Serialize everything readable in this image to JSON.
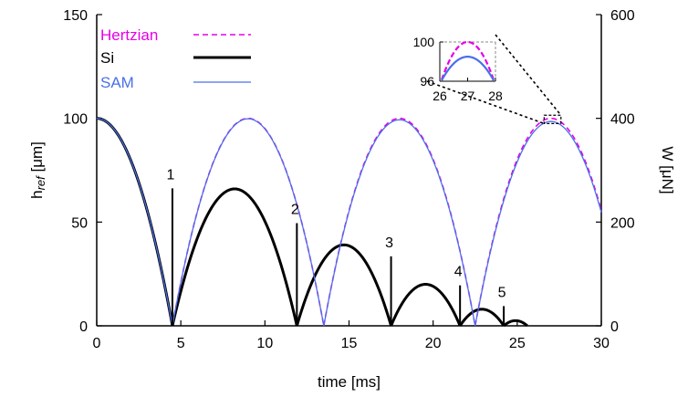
{
  "chart_data": {
    "type": "line",
    "xlabel": "time [ms]",
    "ylabel_left": "h",
    "ylabel_left_sub": "ref",
    "ylabel_left_unit": " [μm]",
    "ylabel_right": "W [μN]",
    "xlim": [
      0,
      30
    ],
    "ylim_left": [
      0,
      150
    ],
    "ylim_right": [
      0,
      600
    ],
    "xticks": [
      "0",
      "5",
      "10",
      "15",
      "20",
      "25",
      "30"
    ],
    "yticks_left": [
      "0",
      "50",
      "100",
      "150"
    ],
    "yticks_right": [
      "0",
      "200",
      "400",
      "600"
    ],
    "grid": false,
    "legend_position": "top-left",
    "colors": {
      "hertzian": "#e600e6",
      "si": "#000000",
      "sam": "#4a6fe8"
    },
    "series": [
      {
        "name": "Hertzian",
        "style": "dashed",
        "arcs": [
          {
            "t_start": 0,
            "t_end": 4.5,
            "apex_t": 0,
            "apex_h": 100
          },
          {
            "t_start": 4.5,
            "t_end": 13.5,
            "apex_t": 9,
            "apex_h": 100
          },
          {
            "t_start": 13.5,
            "t_end": 22.5,
            "apex_t": 18,
            "apex_h": 100
          },
          {
            "t_start": 22.5,
            "t_end": 30,
            "apex_t": 27,
            "apex_h": 100
          }
        ]
      },
      {
        "name": "Si",
        "style": "thick",
        "arcs": [
          {
            "t_start": 0,
            "t_end": 4.5,
            "apex_t": 0,
            "apex_h": 100
          },
          {
            "t_start": 4.5,
            "t_end": 11.9,
            "apex_t": 8.2,
            "apex_h": 66
          },
          {
            "t_start": 11.9,
            "t_end": 17.5,
            "apex_t": 14.7,
            "apex_h": 39
          },
          {
            "t_start": 17.5,
            "t_end": 21.6,
            "apex_t": 19.55,
            "apex_h": 20
          },
          {
            "t_start": 21.6,
            "t_end": 24.2,
            "apex_t": 22.9,
            "apex_h": 8
          },
          {
            "t_start": 24.2,
            "t_end": 25.6,
            "apex_t": 24.9,
            "apex_h": 2.5
          }
        ]
      },
      {
        "name": "SAM",
        "style": "thin",
        "arcs": [
          {
            "t_start": 0,
            "t_end": 4.5,
            "apex_t": 0,
            "apex_h": 100
          },
          {
            "t_start": 4.5,
            "t_end": 13.5,
            "apex_t": 9,
            "apex_h": 99.8
          },
          {
            "t_start": 13.5,
            "t_end": 22.5,
            "apex_t": 18,
            "apex_h": 99.3
          },
          {
            "t_start": 22.5,
            "t_end": 30,
            "apex_t": 27,
            "apex_h": 98.5
          }
        ]
      }
    ],
    "impulses": [
      {
        "label": "1",
        "t": 4.5,
        "W": 265
      },
      {
        "label": "2",
        "t": 11.9,
        "W": 198
      },
      {
        "label": "3",
        "t": 17.5,
        "W": 134
      },
      {
        "label": "4",
        "t": 21.6,
        "W": 78
      },
      {
        "label": "5",
        "t": 24.2,
        "W": 38
      }
    ],
    "inset": {
      "xlim": [
        26,
        28
      ],
      "ylim": [
        96,
        100
      ],
      "xticks": [
        "26",
        "27",
        "28"
      ],
      "yticks": [
        "96",
        "100"
      ],
      "zoom_box": {
        "t": [
          26.6,
          27.6
        ],
        "h": [
          97.5,
          101.5
        ]
      }
    }
  }
}
